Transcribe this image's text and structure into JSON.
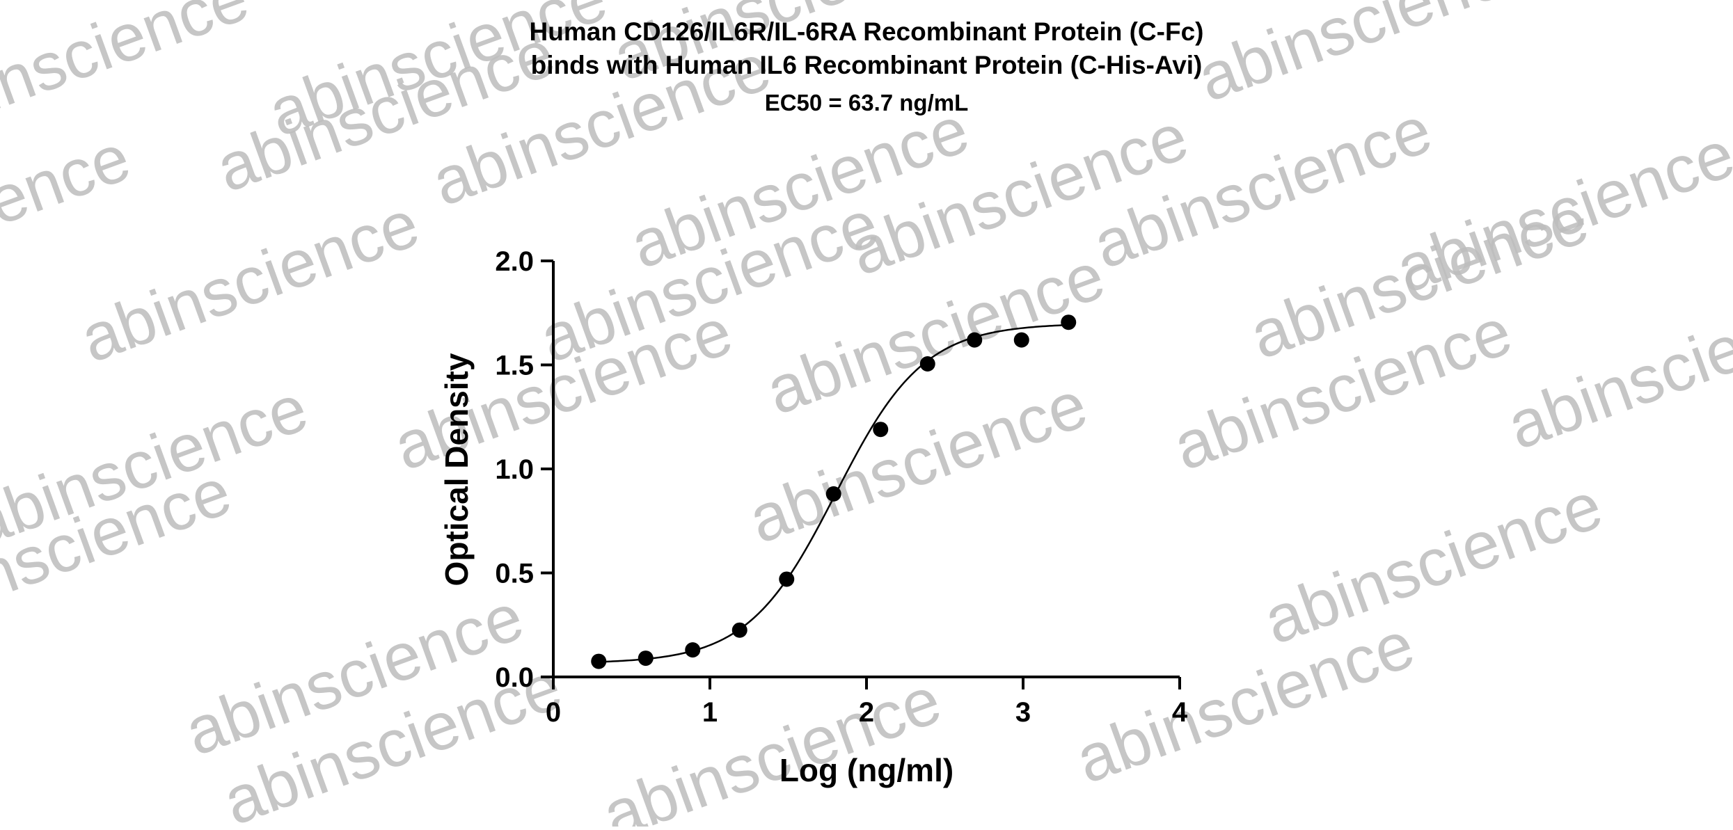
{
  "watermark": "abinscience",
  "chart_data": {
    "type": "scatter",
    "title_lines": [
      "Human CD126/IL6R/IL-6RA Recombinant Protein (C-Fc)",
      "binds with Human IL6 Recombinant Protein (C-His-Avi)"
    ],
    "subtitle": "EC50 = 63.7 ng/mL",
    "xlabel": "Log (ng/ml)",
    "ylabel": "Optical Density",
    "xlim": [
      0,
      4
    ],
    "ylim": [
      0,
      2
    ],
    "x_ticks": [
      0,
      1,
      2,
      3,
      4
    ],
    "y_ticks": [
      0,
      0.5,
      1,
      1.5,
      2
    ],
    "x_tick_labels": [
      "0",
      "1",
      "2",
      "3",
      "4"
    ],
    "y_tick_labels": [
      "0.0",
      "0.5",
      "1.0",
      "1.5",
      "2.0"
    ],
    "grid": false,
    "series": [
      {
        "x": [
          0.29,
          0.59,
          0.89,
          1.19,
          1.49,
          1.79,
          2.09,
          2.39,
          2.69,
          2.99,
          3.29
        ],
        "y": [
          0.075,
          0.09,
          0.13,
          0.225,
          0.47,
          0.88,
          1.19,
          1.505,
          1.62,
          1.62,
          1.705
        ],
        "color": "#000000",
        "marker": "circle"
      }
    ],
    "fit": {
      "type": "four-parameter logistic",
      "bottom": 0.065,
      "top": 1.7,
      "log_ec50": 1.804,
      "hill_slope": 1.55,
      "x_range": [
        0.29,
        3.29
      ],
      "color": "#000000"
    }
  }
}
